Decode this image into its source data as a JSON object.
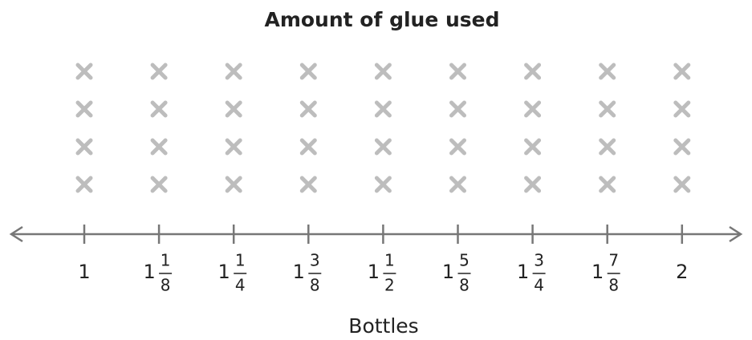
{
  "chart_data": {
    "type": "lineplot",
    "title": "Amount of glue used",
    "x_label": "Bottles",
    "categories": [
      {
        "whole": 1
      },
      {
        "whole": 1,
        "numerator": 1,
        "denominator": 8
      },
      {
        "whole": 1,
        "numerator": 1,
        "denominator": 4
      },
      {
        "whole": 1,
        "numerator": 3,
        "denominator": 8
      },
      {
        "whole": 1,
        "numerator": 1,
        "denominator": 2
      },
      {
        "whole": 1,
        "numerator": 5,
        "denominator": 8
      },
      {
        "whole": 1,
        "numerator": 3,
        "denominator": 4
      },
      {
        "whole": 1,
        "numerator": 7,
        "denominator": 8
      },
      {
        "whole": 2
      }
    ],
    "values": [
      4,
      4,
      4,
      4,
      4,
      4,
      4,
      4,
      4
    ],
    "color": "#bdbdbd"
  }
}
